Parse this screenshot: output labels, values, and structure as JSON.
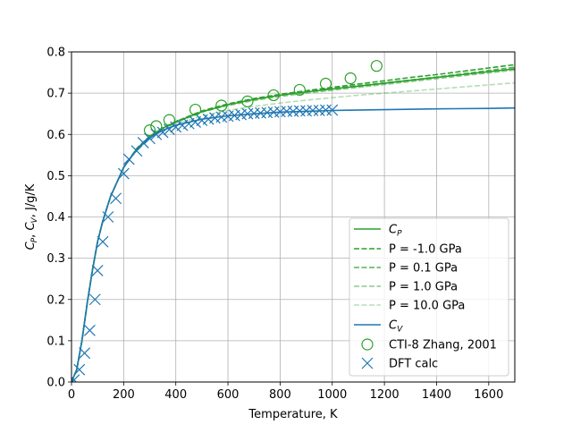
{
  "chart_data": {
    "type": "line",
    "title": "",
    "xlabel": "Temperature, K",
    "ylabel": "C_P, C_V, J/g/K",
    "ylabel_parts": {
      "cp_base": "C",
      "cp_sub": "P",
      "comma": ", ",
      "cv_base": "C",
      "cv_sub": "V",
      "unit": ", J/g/K"
    },
    "xlim": [
      0,
      1700
    ],
    "ylim": [
      0.0,
      0.8
    ],
    "xticks": [
      "0",
      "200",
      "400",
      "600",
      "800",
      "1000",
      "1200",
      "1400",
      "1600"
    ],
    "xtick_values": [
      0,
      200,
      400,
      600,
      800,
      1000,
      1200,
      1400,
      1600
    ],
    "yticks": [
      "0.0",
      "0.1",
      "0.2",
      "0.3",
      "0.4",
      "0.5",
      "0.6",
      "0.7",
      "0.8"
    ],
    "ytick_values": [
      0.0,
      0.1,
      0.2,
      0.3,
      0.4,
      0.5,
      0.6,
      0.7,
      0.8
    ],
    "grid": true,
    "legend_placement": "lower-right",
    "series": [
      {
        "name": "C_P",
        "label_base": "C",
        "label_sub": "P",
        "style": "solid",
        "color": "#2ca02c",
        "opacity": 1.0,
        "x": [
          0,
          20,
          40,
          60,
          80,
          100,
          120,
          150,
          200,
          250,
          300,
          350,
          400,
          500,
          600,
          700,
          800,
          900,
          1000,
          1100,
          1200,
          1300,
          1400,
          1500,
          1600,
          1700
        ],
        "y": [
          0.0,
          0.03,
          0.1,
          0.19,
          0.27,
          0.34,
          0.39,
          0.45,
          0.52,
          0.565,
          0.595,
          0.615,
          0.63,
          0.655,
          0.672,
          0.685,
          0.695,
          0.703,
          0.71,
          0.717,
          0.724,
          0.731,
          0.738,
          0.745,
          0.752,
          0.759
        ]
      },
      {
        "name": "P = -1.0 GPa",
        "style": "dashed",
        "color": "#2ca02c",
        "opacity": 1.0,
        "x": [
          0,
          20,
          40,
          60,
          80,
          100,
          120,
          150,
          200,
          250,
          300,
          350,
          400,
          500,
          600,
          700,
          800,
          900,
          1000,
          1100,
          1200,
          1300,
          1400,
          1500,
          1600,
          1700
        ],
        "y": [
          0.0,
          0.03,
          0.1,
          0.19,
          0.27,
          0.34,
          0.39,
          0.45,
          0.52,
          0.566,
          0.596,
          0.616,
          0.631,
          0.657,
          0.674,
          0.687,
          0.697,
          0.706,
          0.714,
          0.722,
          0.73,
          0.738,
          0.745,
          0.753,
          0.761,
          0.769
        ]
      },
      {
        "name": "P = 0.1 GPa",
        "style": "dashed",
        "color": "#2ca02c",
        "opacity": 0.8,
        "x": [
          0,
          20,
          40,
          60,
          80,
          100,
          120,
          150,
          200,
          250,
          300,
          350,
          400,
          500,
          600,
          700,
          800,
          900,
          1000,
          1100,
          1200,
          1300,
          1400,
          1500,
          1600,
          1700
        ],
        "y": [
          0.0,
          0.03,
          0.1,
          0.19,
          0.27,
          0.34,
          0.39,
          0.45,
          0.52,
          0.565,
          0.595,
          0.615,
          0.63,
          0.655,
          0.672,
          0.685,
          0.695,
          0.704,
          0.711,
          0.718,
          0.725,
          0.732,
          0.739,
          0.747,
          0.755,
          0.763
        ]
      },
      {
        "name": "P = 1.0 GPa",
        "style": "dashed",
        "color": "#2ca02c",
        "opacity": 0.55,
        "x": [
          0,
          20,
          40,
          60,
          80,
          100,
          120,
          150,
          200,
          250,
          300,
          350,
          400,
          500,
          600,
          700,
          800,
          900,
          1000,
          1100,
          1200,
          1300,
          1400,
          1500,
          1600,
          1700
        ],
        "y": [
          0.0,
          0.03,
          0.1,
          0.19,
          0.27,
          0.34,
          0.39,
          0.45,
          0.52,
          0.564,
          0.594,
          0.614,
          0.629,
          0.654,
          0.67,
          0.682,
          0.692,
          0.7,
          0.707,
          0.714,
          0.721,
          0.728,
          0.735,
          0.742,
          0.749,
          0.756
        ]
      },
      {
        "name": "P = 10.0 GPa",
        "style": "dashed",
        "color": "#2ca02c",
        "opacity": 0.35,
        "x": [
          0,
          20,
          40,
          60,
          80,
          100,
          120,
          150,
          200,
          250,
          300,
          350,
          400,
          500,
          600,
          700,
          800,
          900,
          1000,
          1100,
          1200,
          1300,
          1400,
          1500,
          1600,
          1700
        ],
        "y": [
          0.0,
          0.03,
          0.1,
          0.19,
          0.27,
          0.34,
          0.39,
          0.45,
          0.52,
          0.562,
          0.59,
          0.61,
          0.624,
          0.645,
          0.658,
          0.668,
          0.676,
          0.683,
          0.689,
          0.695,
          0.7,
          0.705,
          0.71,
          0.715,
          0.72,
          0.725
        ]
      },
      {
        "name": "C_V",
        "label_base": "C",
        "label_sub": "V",
        "style": "solid",
        "color": "#1f77b4",
        "opacity": 1.0,
        "x": [
          0,
          20,
          40,
          60,
          80,
          100,
          120,
          150,
          200,
          250,
          300,
          350,
          400,
          500,
          600,
          700,
          800,
          900,
          1000,
          1200,
          1400,
          1600,
          1700
        ],
        "y": [
          0.0,
          0.03,
          0.1,
          0.19,
          0.27,
          0.34,
          0.39,
          0.45,
          0.52,
          0.563,
          0.592,
          0.61,
          0.622,
          0.637,
          0.645,
          0.65,
          0.654,
          0.656,
          0.658,
          0.66,
          0.662,
          0.663,
          0.664
        ]
      }
    ],
    "markers": [
      {
        "name": "CTI-8 Zhang, 2001",
        "marker": "open-circle",
        "color": "#2ca02c",
        "x": [
          300,
          325,
          375,
          475,
          575,
          675,
          775,
          875,
          975,
          1070,
          1170
        ],
        "y": [
          0.61,
          0.62,
          0.635,
          0.66,
          0.67,
          0.68,
          0.695,
          0.708,
          0.723,
          0.736,
          0.766
        ]
      },
      {
        "name": "DFT calc",
        "marker": "x",
        "color": "#1f77b4",
        "x": [
          10,
          30,
          50,
          70,
          90,
          100,
          120,
          140,
          170,
          200,
          220,
          250,
          275,
          300,
          325,
          350,
          375,
          400,
          425,
          450,
          475,
          500,
          525,
          550,
          575,
          600,
          625,
          650,
          675,
          700,
          725,
          750,
          775,
          800,
          825,
          850,
          875,
          900,
          925,
          950,
          975,
          1000
        ],
        "y": [
          0.005,
          0.03,
          0.07,
          0.125,
          0.2,
          0.27,
          0.34,
          0.4,
          0.445,
          0.505,
          0.54,
          0.56,
          0.58,
          0.59,
          0.6,
          0.605,
          0.612,
          0.618,
          0.622,
          0.626,
          0.63,
          0.634,
          0.637,
          0.64,
          0.642,
          0.644,
          0.646,
          0.648,
          0.65,
          0.651,
          0.652,
          0.653,
          0.654,
          0.655,
          0.656,
          0.656,
          0.657,
          0.657,
          0.658,
          0.658,
          0.659,
          0.659
        ]
      }
    ],
    "legend_order": [
      0,
      1,
      2,
      3,
      4,
      5,
      "m0",
      "m1"
    ]
  }
}
